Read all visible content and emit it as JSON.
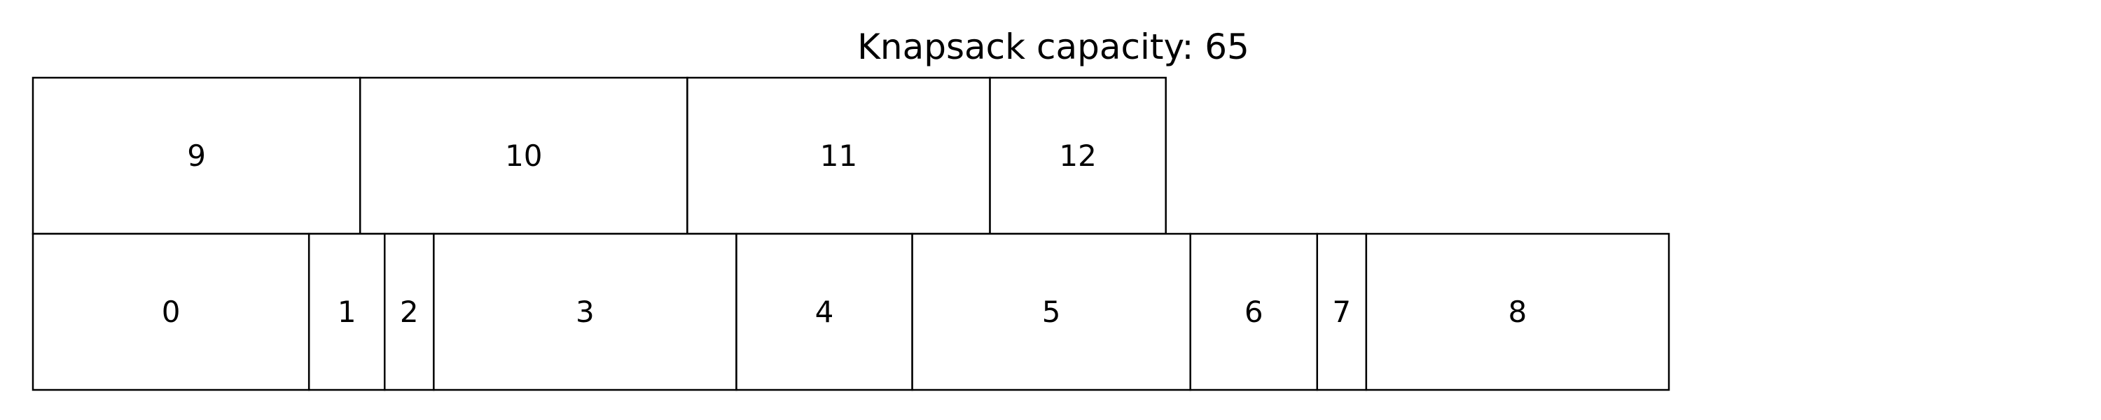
{
  "title": "Knapsack capacity: 65",
  "rows": [
    {
      "name": "top-row",
      "items": [
        {
          "label": "9",
          "width": 8
        },
        {
          "label": "10",
          "width": 8
        },
        {
          "label": "11",
          "width": 7.4
        },
        {
          "label": "12",
          "width": 4.3
        }
      ]
    },
    {
      "name": "bottom-row",
      "items": [
        {
          "label": "0",
          "width": 6.75
        },
        {
          "label": "1",
          "width": 1.85
        },
        {
          "label": "2",
          "width": 1.2
        },
        {
          "label": "3",
          "width": 7.4
        },
        {
          "label": "4",
          "width": 4.3
        },
        {
          "label": "5",
          "width": 6.8
        },
        {
          "label": "6",
          "width": 3.1
        },
        {
          "label": "7",
          "width": 1.2
        },
        {
          "label": "8",
          "width": 7.4
        }
      ]
    }
  ],
  "colors": {
    "fill": "#ffffff",
    "stroke": "#000000",
    "text": "#000000"
  }
}
